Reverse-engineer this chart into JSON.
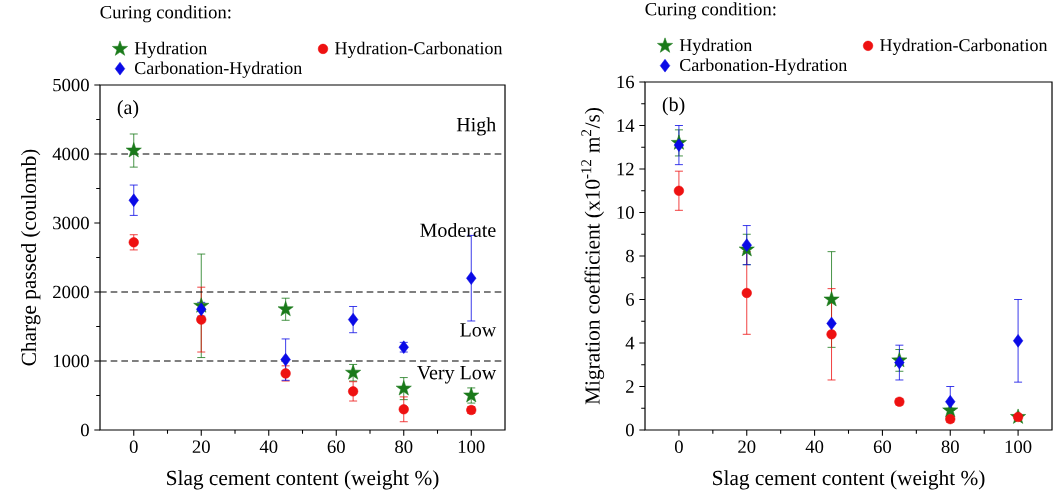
{
  "chart_data": [
    {
      "type": "scatter",
      "xlabel": "Slag cement content (weight %)",
      "ylabel": "Charge passed (coulomb)",
      "legend_title": "Curing condition:",
      "legend": "top",
      "x": [
        0,
        20,
        45,
        65,
        80,
        100
      ],
      "xlim": [
        -10,
        110
      ],
      "xticks": [
        0,
        20,
        40,
        60,
        80,
        100
      ],
      "ylim": [
        0,
        5000
      ],
      "yticks": [
        0,
        1000,
        2000,
        3000,
        4000,
        5000
      ],
      "series": [
        {
          "name": "Hydration",
          "color": "#1a7a1a",
          "marker": "star",
          "values": [
            4050,
            1800,
            1750,
            830,
            600,
            500
          ],
          "errors": [
            240,
            750,
            160,
            120,
            160,
            110
          ]
        },
        {
          "name": "Hydration-Carbonation",
          "color": "#ee1111",
          "marker": "circle",
          "values": [
            2720,
            1600,
            820,
            560,
            300,
            290
          ],
          "errors": [
            110,
            470,
            110,
            140,
            180,
            50
          ]
        },
        {
          "name": "Carbonation-Hydration",
          "color": "#0a0ae6",
          "marker": "diamond",
          "values": [
            3330,
            1750,
            1020,
            1600,
            1200,
            2200
          ],
          "errors": [
            220,
            100,
            300,
            190,
            70,
            620
          ]
        }
      ],
      "ref_lines": [
        {
          "axis": "y",
          "value": 4000,
          "line_style": "dashed"
        },
        {
          "axis": "y",
          "value": 2000,
          "line_style": "dashed"
        },
        {
          "axis": "y",
          "value": 1000,
          "line_style": "dashed"
        }
      ],
      "annotations": [
        "(a)",
        "High",
        "Moderate",
        "Low",
        "Very Low"
      ]
    },
    {
      "type": "scatter",
      "xlabel": "Slag cement content (weight %)",
      "ylabel": "Migration coefficient (x10$^{-12}$ m$^{2}$/s)",
      "legend_title": "Curing condition:",
      "legend": "top",
      "x": [
        0,
        20,
        45,
        65,
        80,
        100
      ],
      "xlim": [
        -10,
        110
      ],
      "xticks": [
        0,
        20,
        40,
        60,
        80,
        100
      ],
      "ylim": [
        0,
        16
      ],
      "yticks": [
        0,
        2,
        4,
        6,
        8,
        10,
        12,
        14,
        16
      ],
      "series": [
        {
          "name": "Hydration",
          "color": "#1a7a1a",
          "marker": "star",
          "values": [
            13.2,
            8.3,
            6.0,
            3.2,
            0.9,
            0.6
          ],
          "errors": [
            0.6,
            0.7,
            2.2,
            0.5,
            null,
            null
          ]
        },
        {
          "name": "Hydration-Carbonation",
          "color": "#ee1111",
          "marker": "circle",
          "values": [
            11.0,
            6.3,
            4.4,
            1.3,
            0.5,
            0.6
          ],
          "errors": [
            0.9,
            1.9,
            2.1,
            0.15,
            0.15,
            0.1
          ]
        },
        {
          "name": "Carbonation-Hydration",
          "color": "#0a0ae6",
          "marker": "diamond",
          "values": [
            13.1,
            8.5,
            4.9,
            3.1,
            1.3,
            4.1
          ],
          "errors": [
            0.9,
            0.9,
            null,
            0.8,
            0.7,
            1.9
          ]
        }
      ],
      "annotations": [
        "(b)"
      ]
    }
  ]
}
